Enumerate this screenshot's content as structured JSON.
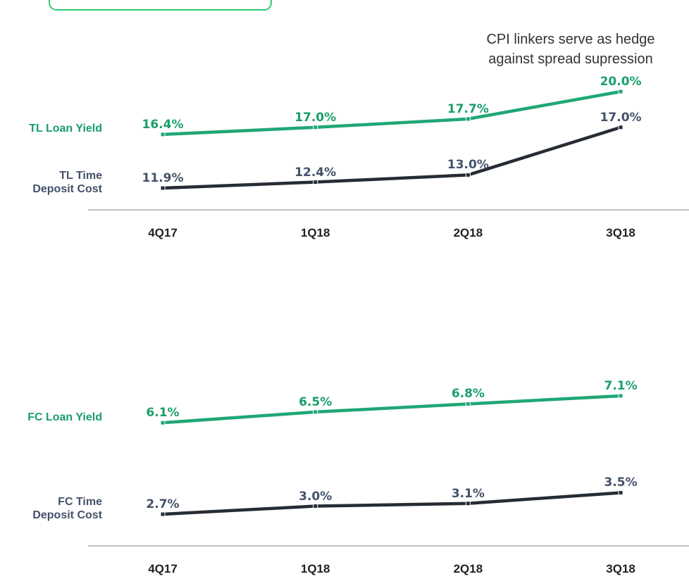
{
  "annotation": "CPI linkers serve as hedge against spread supression",
  "chart_data": [
    {
      "type": "line",
      "categories": [
        "4Q17",
        "1Q18",
        "2Q18",
        "3Q18"
      ],
      "series": [
        {
          "name": "TL Loan Yield",
          "color": "#1fa774",
          "label_color": "#1a9e6a",
          "values": [
            16.4,
            17.0,
            17.7,
            20.0
          ],
          "value_labels": [
            "16.4%",
            "17.0%",
            "17.7%",
            "20.0%"
          ]
        },
        {
          "name": "TL Time Deposit Cost",
          "color": "#262c33",
          "label_color": "#44516a",
          "values": [
            11.9,
            12.4,
            13.0,
            17.0
          ],
          "value_labels": [
            "11.9%",
            "12.4%",
            "13.0%",
            "17.0%"
          ]
        }
      ]
    },
    {
      "type": "line",
      "categories": [
        "4Q17",
        "1Q18",
        "2Q18",
        "3Q18"
      ],
      "series": [
        {
          "name": "FC Loan Yield",
          "color": "#1fa774",
          "label_color": "#1a9e6a",
          "values": [
            6.1,
            6.5,
            6.8,
            7.1
          ],
          "value_labels": [
            "6.1%",
            "6.5%",
            "6.8%",
            "7.1%"
          ]
        },
        {
          "name": "FC Time Deposit Cost",
          "color": "#262c33",
          "label_color": "#44516a",
          "values": [
            2.7,
            3.0,
            3.1,
            3.5
          ],
          "value_labels": [
            "2.7%",
            "3.0%",
            "3.1%",
            "3.5%"
          ]
        }
      ]
    }
  ]
}
